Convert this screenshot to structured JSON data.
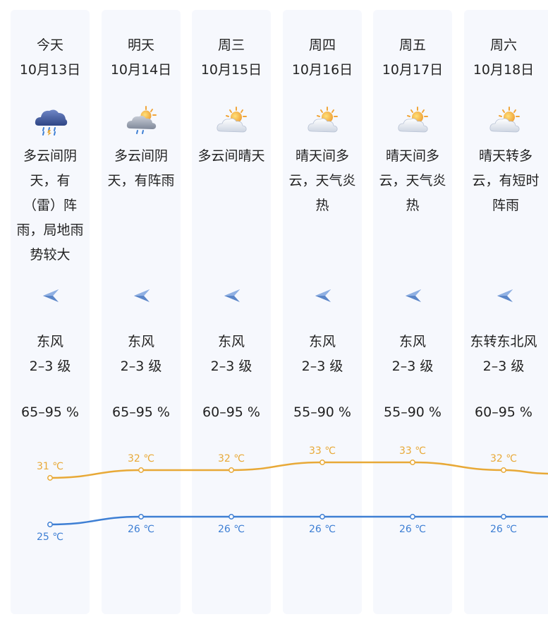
{
  "days": [
    {
      "day": "今天",
      "date": "10月13日",
      "desc": "多云间阴天，有（雷）阵雨，局地雨势较大",
      "weather_icon": "thunder-rain-cloud-icon",
      "wind_dir": "东风",
      "wind_level": "2–3 级",
      "humidity": "65–95 %"
    },
    {
      "day": "明天",
      "date": "10月14日",
      "desc": "多云间阴天，有阵雨",
      "weather_icon": "sun-cloud-rain-icon",
      "wind_dir": "东风",
      "wind_level": "2–3 级",
      "humidity": "65–95 %"
    },
    {
      "day": "周三",
      "date": "10月15日",
      "desc": "多云间晴天",
      "weather_icon": "partly-cloudy-icon",
      "wind_dir": "东风",
      "wind_level": "2–3 级",
      "humidity": "60–95 %"
    },
    {
      "day": "周四",
      "date": "10月16日",
      "desc": "晴天间多云，天气炎热",
      "weather_icon": "partly-cloudy-icon",
      "wind_dir": "东风",
      "wind_level": "2–3 级",
      "humidity": "55–90 %"
    },
    {
      "day": "周五",
      "date": "10月17日",
      "desc": "晴天间多云，天气炎热",
      "weather_icon": "partly-cloudy-icon",
      "wind_dir": "东风",
      "wind_level": "2–3 级",
      "humidity": "55–90 %"
    },
    {
      "day": "周六",
      "date": "10月18日",
      "desc": "晴天转多云，有短时阵雨",
      "weather_icon": "partly-cloudy-icon",
      "wind_dir": "东转东北风",
      "wind_level": "2–3 级",
      "humidity": "60–95 %"
    }
  ],
  "wind_icon": "east-wind-arrow-icon",
  "colors": {
    "high": "#e8a937",
    "low": "#3e7fd4",
    "card_bg": "#f6f8fd"
  },
  "chart_data": {
    "type": "line",
    "x": [
      "今天",
      "明天",
      "周三",
      "周四",
      "周五",
      "周六"
    ],
    "series": [
      {
        "values": [
          31,
          32,
          32,
          33,
          33,
          32
        ],
        "labels": [
          "31 ℃",
          "32 ℃",
          "32 ℃",
          "33 ℃",
          "33 ℃",
          "32 ℃"
        ],
        "color": "#e8a937"
      },
      {
        "values": [
          25,
          26,
          26,
          26,
          26,
          26
        ],
        "labels": [
          "25 ℃",
          "26 ℃",
          "26 ℃",
          "26 ℃",
          "26 ℃",
          "26 ℃"
        ],
        "color": "#3e7fd4"
      }
    ]
  }
}
